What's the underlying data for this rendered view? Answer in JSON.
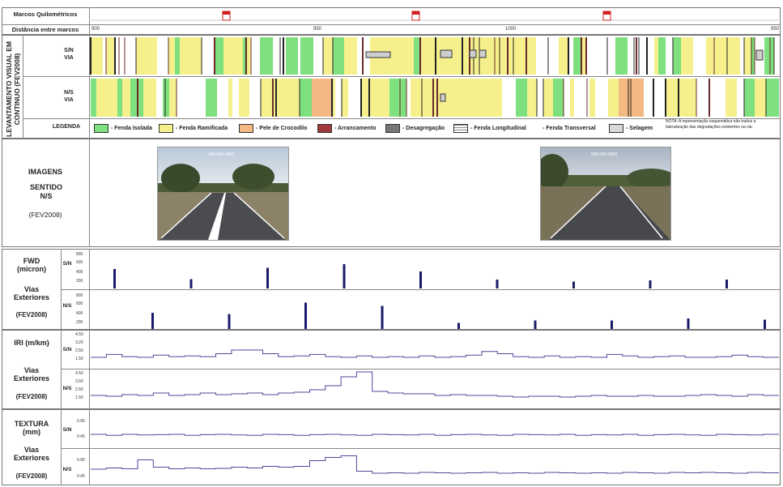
{
  "header": {
    "markers_label": "Marcos Quilométricos",
    "distance_label": "Distância entre marcos",
    "distance_ticks": [
      "900",
      "950",
      "1000",
      "950"
    ]
  },
  "survey": {
    "section_title": "LEVANTAMENTO VISUAL EM CONTINUO (FEV2008)",
    "sn_label": "S/N VIA",
    "ns_label": "N/S VIA",
    "legend_label": "LEGENDA",
    "legend": [
      {
        "name": "- Fenda Isolada",
        "color": "#7ee07e"
      },
      {
        "name": "- Fenda Ramificada",
        "color": "#f5f08c"
      },
      {
        "name": "- Pele de Crocodilo",
        "color": "#f4b982"
      },
      {
        "name": "- Arrancamento",
        "color": "#a03a3a"
      },
      {
        "name": "- Desagregação",
        "color": "#777777"
      },
      {
        "name": "- Fenda Longitudinal",
        "color": "#cfcfcf"
      },
      {
        "name": "- Fenda Transversal",
        "color": "#ffffff"
      },
      {
        "name": "- Selagem",
        "color": "#d8d8d8"
      }
    ],
    "note": "NOTA: A representação esquemática não traduz a lateralização das degradações existentes na via."
  },
  "images": {
    "title": "IMAGENS",
    "direction": "SENTIDO N/S",
    "date": "(FEV2008)"
  },
  "fwd": {
    "title": "FWD (micron)",
    "subtitle": "Vias Exteriores",
    "date": "(FEV2008)",
    "sn": "S/N",
    "ns": "N/S",
    "ticks": [
      "800",
      "600",
      "400",
      "200"
    ],
    "sn_values": [
      480,
      230,
      510,
      600,
      420,
      220,
      170,
      200,
      220
    ],
    "ns_values": [
      400,
      370,
      650,
      570,
      150,
      210,
      210,
      260,
      230
    ]
  },
  "iri": {
    "title": "IRI (m/km)",
    "subtitle": "Vias Exteriores",
    "date": "(FEV2008)",
    "sn": "S/N",
    "ns": "N/S",
    "sn_ticks": [
      "4.50",
      "3.20",
      "2.50",
      "1.50"
    ],
    "ns_ticks": [
      "4.50",
      "3.50",
      "2.50",
      "1.50"
    ]
  },
  "textura": {
    "title": "TEXTURA (mm)",
    "subtitle": "Vias Exteriores",
    "date": "(FEV2008)",
    "sn": "S/N",
    "ns": "N/S",
    "ticks": [
      "0.90",
      "0.45"
    ]
  },
  "colors": {
    "line": "#4a4a9a",
    "bar": "#1a1a6a",
    "marker": "#d02020"
  }
}
